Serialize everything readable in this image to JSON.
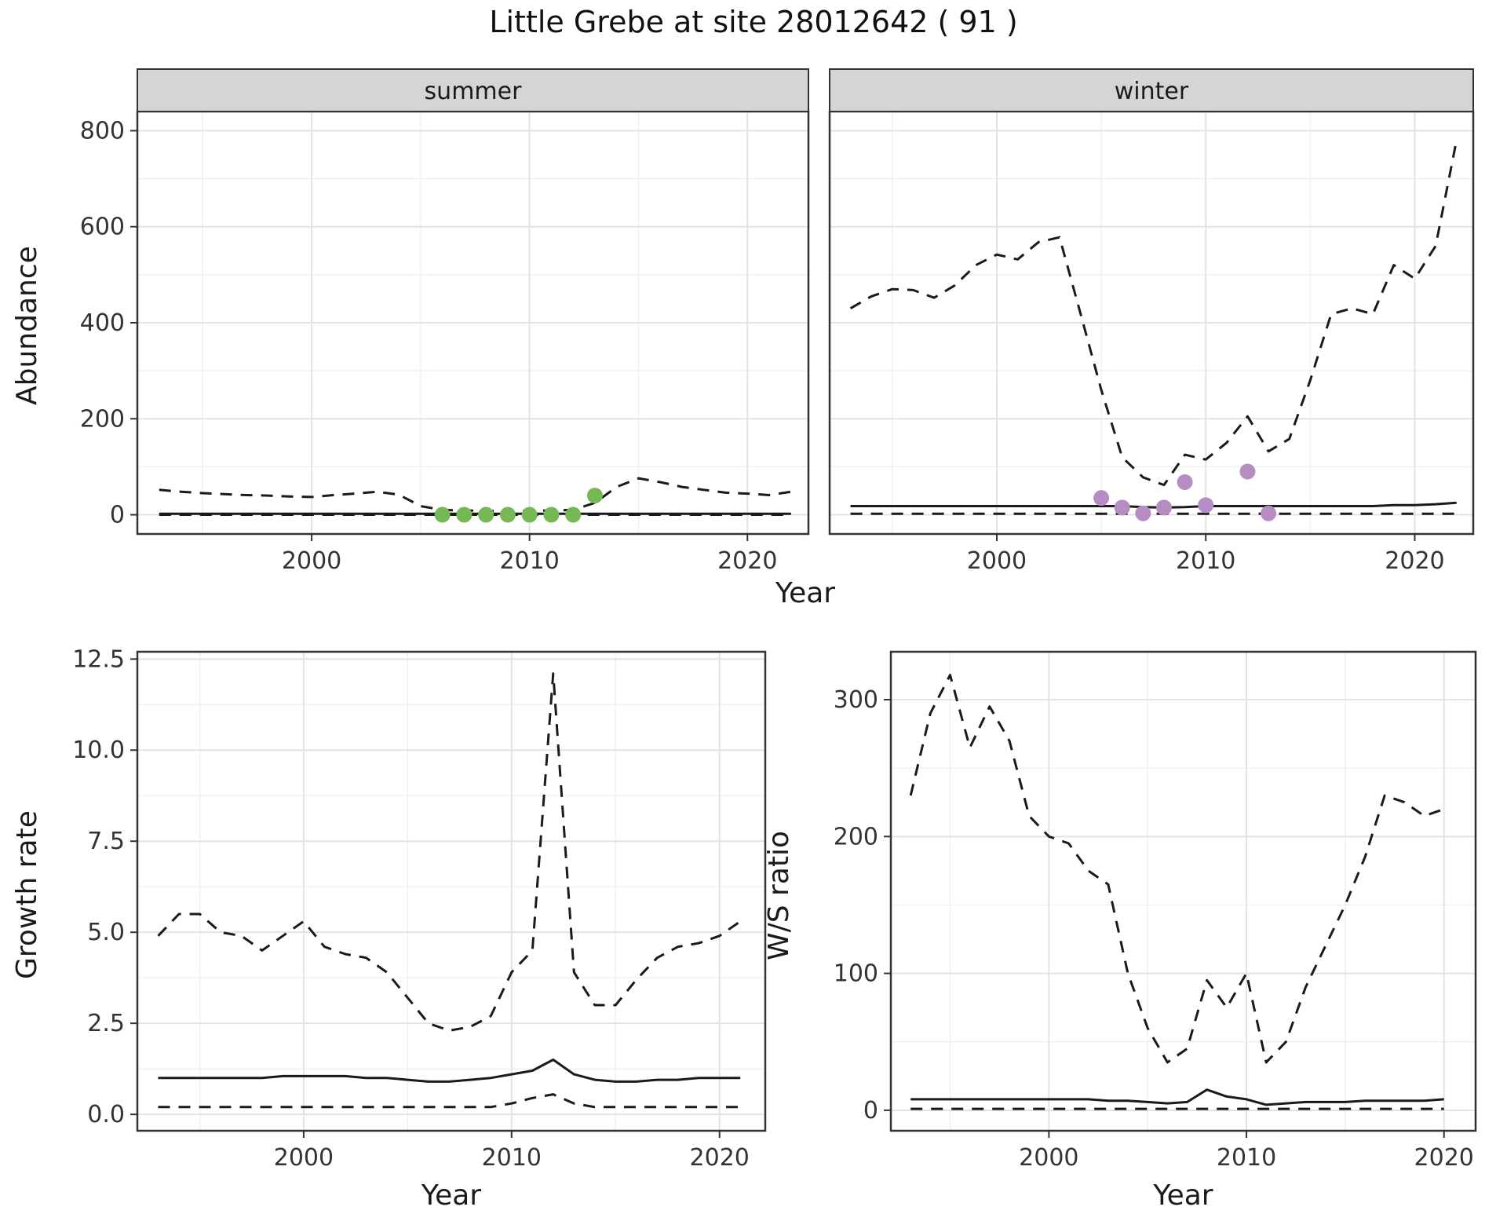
{
  "title": "Little Grebe at site 28012642 ( 91 )",
  "axis_labels": {
    "abundance": "Abundance",
    "year_top": "Year",
    "growth": "Growth rate",
    "year_growth": "Year",
    "ws": "W/S ratio",
    "year_ws": "Year"
  },
  "colors": {
    "line": "#1a1a1a",
    "summer_points": "#76b856",
    "winter_points": "#b78cc2",
    "strip_bg": "#d5d5d5",
    "grid_major": "#e3e3e3",
    "grid_minor": "#f0f0f0",
    "panel_border": "#333333",
    "tick_text": "#333333"
  },
  "chart_data": [
    {
      "id": "abundance-summer",
      "type": "line",
      "facet": "summer",
      "ylabel": "Abundance",
      "xlabel": "Year",
      "xlim": [
        1992,
        2022.8
      ],
      "ylim": [
        -40,
        840
      ],
      "xticks": [
        2000,
        2010,
        2020
      ],
      "xtick_labels": [
        "2000",
        "2010",
        "2020"
      ],
      "yticks": [
        0,
        200,
        400,
        600,
        800
      ],
      "ytick_labels": [
        "0",
        "200",
        "400",
        "600",
        "800"
      ],
      "series": [
        {
          "name": "upper-ci",
          "style": "dashed",
          "start": 1993,
          "values": [
            52,
            48,
            45,
            43,
            41,
            40,
            38,
            37,
            41,
            44,
            48,
            42,
            18,
            10,
            9,
            8,
            8,
            8,
            9,
            10,
            25,
            58,
            76,
            68,
            58,
            52,
            46,
            44,
            41,
            48
          ]
        },
        {
          "name": "median",
          "style": "solid",
          "start": 1993,
          "values": [
            2,
            2,
            2,
            2,
            2,
            2,
            2,
            2,
            2,
            2,
            2,
            2,
            2,
            2,
            2,
            2,
            2,
            2,
            2,
            2,
            2,
            2,
            2,
            2,
            2,
            2,
            2,
            2,
            2,
            2
          ]
        },
        {
          "name": "lower-ci",
          "style": "dashed",
          "start": 1993,
          "values": [
            0,
            0,
            0,
            0,
            0,
            0,
            0,
            0,
            0,
            0,
            0,
            0,
            0,
            0,
            0,
            0,
            0,
            0,
            0,
            0,
            0,
            0,
            0,
            0,
            0,
            0,
            0,
            0,
            0,
            0
          ]
        }
      ],
      "points": {
        "name": "observed-counts-summer",
        "color_key": "summer_points",
        "data": [
          [
            2006,
            0
          ],
          [
            2007,
            0
          ],
          [
            2008,
            0
          ],
          [
            2009,
            0
          ],
          [
            2010,
            0
          ],
          [
            2011,
            0
          ],
          [
            2012,
            0
          ],
          [
            2013,
            40
          ]
        ]
      }
    },
    {
      "id": "abundance-winter",
      "type": "line",
      "facet": "winter",
      "ylabel": "Abundance",
      "xlabel": "Year",
      "xlim": [
        1992,
        2022.8
      ],
      "ylim": [
        -40,
        840
      ],
      "xticks": [
        2000,
        2010,
        2020
      ],
      "xtick_labels": [
        "2000",
        "2010",
        "2020"
      ],
      "yticks": [
        0,
        200,
        400,
        600,
        800
      ],
      "ytick_labels": [
        "0",
        "200",
        "400",
        "600",
        "800"
      ],
      "series": [
        {
          "name": "upper-ci",
          "style": "dashed",
          "start": 1993,
          "values": [
            430,
            455,
            470,
            468,
            452,
            478,
            520,
            542,
            532,
            568,
            578,
            420,
            260,
            120,
            78,
            62,
            125,
            115,
            150,
            205,
            132,
            158,
            280,
            418,
            430,
            418,
            520,
            492,
            560,
            780
          ]
        },
        {
          "name": "median",
          "style": "solid",
          "start": 1993,
          "values": [
            18,
            18,
            18,
            18,
            18,
            18,
            18,
            18,
            18,
            18,
            18,
            18,
            18,
            18,
            16,
            15,
            16,
            18,
            18,
            18,
            18,
            18,
            18,
            18,
            18,
            18,
            20,
            20,
            22,
            25
          ]
        },
        {
          "name": "lower-ci",
          "style": "dashed",
          "start": 1993,
          "values": [
            2,
            2,
            2,
            2,
            2,
            2,
            2,
            2,
            2,
            2,
            2,
            2,
            2,
            2,
            2,
            2,
            2,
            2,
            2,
            2,
            2,
            2,
            2,
            2,
            2,
            2,
            2,
            2,
            2,
            2
          ]
        }
      ],
      "points": {
        "name": "observed-counts-winter",
        "color_key": "winter_points",
        "data": [
          [
            2005,
            35
          ],
          [
            2006,
            15
          ],
          [
            2007,
            3
          ],
          [
            2008,
            15
          ],
          [
            2009,
            68
          ],
          [
            2010,
            20
          ],
          [
            2012,
            90
          ],
          [
            2013,
            3
          ]
        ]
      }
    },
    {
      "id": "growth-rate",
      "type": "line",
      "facet": null,
      "ylabel": "Growth rate",
      "xlabel": "Year",
      "xlim": [
        1992,
        2022.2
      ],
      "ylim": [
        -0.45,
        12.7
      ],
      "xticks": [
        2000,
        2010,
        2020
      ],
      "xtick_labels": [
        "2000",
        "2010",
        "2020"
      ],
      "yticks": [
        0,
        2.5,
        5,
        7.5,
        10,
        12.5
      ],
      "ytick_labels": [
        "0.0",
        "2.5",
        "5.0",
        "7.5",
        "10.0",
        "12.5"
      ],
      "series": [
        {
          "name": "upper-ci",
          "style": "dashed",
          "start": 1993,
          "values": [
            4.9,
            5.5,
            5.5,
            5.0,
            4.9,
            4.5,
            4.9,
            5.3,
            4.6,
            4.4,
            4.3,
            3.9,
            3.2,
            2.5,
            2.3,
            2.4,
            2.7,
            3.9,
            4.5,
            12.1,
            3.9,
            3.0,
            3.0,
            3.7,
            4.3,
            4.6,
            4.7,
            4.9,
            5.3
          ]
        },
        {
          "name": "median",
          "style": "solid",
          "start": 1993,
          "values": [
            1.0,
            1.0,
            1.0,
            1.0,
            1.0,
            1.0,
            1.05,
            1.05,
            1.05,
            1.05,
            1.0,
            1.0,
            0.95,
            0.9,
            0.9,
            0.95,
            1.0,
            1.1,
            1.2,
            1.5,
            1.1,
            0.95,
            0.9,
            0.9,
            0.95,
            0.95,
            1.0,
            1.0,
            1.0
          ]
        },
        {
          "name": "lower-ci",
          "style": "dashed",
          "start": 1993,
          "values": [
            0.2,
            0.2,
            0.2,
            0.2,
            0.2,
            0.2,
            0.2,
            0.2,
            0.2,
            0.2,
            0.2,
            0.2,
            0.2,
            0.2,
            0.2,
            0.2,
            0.2,
            0.3,
            0.45,
            0.55,
            0.3,
            0.2,
            0.2,
            0.2,
            0.2,
            0.2,
            0.2,
            0.2,
            0.2
          ]
        }
      ],
      "points": null
    },
    {
      "id": "ws-ratio",
      "type": "line",
      "facet": null,
      "ylabel": "W/S ratio",
      "xlabel": "Year",
      "xlim": [
        1992,
        2021.6
      ],
      "ylim": [
        -15,
        335
      ],
      "xticks": [
        2000,
        2010,
        2020
      ],
      "xtick_labels": [
        "2000",
        "2010",
        "2020"
      ],
      "yticks": [
        0,
        100,
        200,
        300
      ],
      "ytick_labels": [
        "0",
        "100",
        "200",
        "300"
      ],
      "series": [
        {
          "name": "upper-ci",
          "style": "dashed",
          "start": 1993,
          "values": [
            230,
            290,
            318,
            265,
            295,
            270,
            215,
            200,
            195,
            175,
            165,
            100,
            60,
            35,
            45,
            95,
            75,
            100,
            35,
            50,
            90,
            120,
            150,
            185,
            230,
            225,
            215,
            220
          ]
        },
        {
          "name": "median",
          "style": "solid",
          "start": 1993,
          "values": [
            8,
            8,
            8,
            8,
            8,
            8,
            8,
            8,
            8,
            8,
            7,
            7,
            6,
            5,
            6,
            15,
            10,
            8,
            4,
            5,
            6,
            6,
            6,
            7,
            7,
            7,
            7,
            8
          ]
        },
        {
          "name": "lower-ci",
          "style": "dashed",
          "start": 1993,
          "values": [
            1,
            1,
            1,
            1,
            1,
            1,
            1,
            1,
            1,
            1,
            1,
            1,
            1,
            1,
            1,
            1,
            1,
            1,
            1,
            1,
            1,
            1,
            1,
            1,
            1,
            1,
            1,
            1
          ]
        }
      ],
      "points": null
    }
  ]
}
